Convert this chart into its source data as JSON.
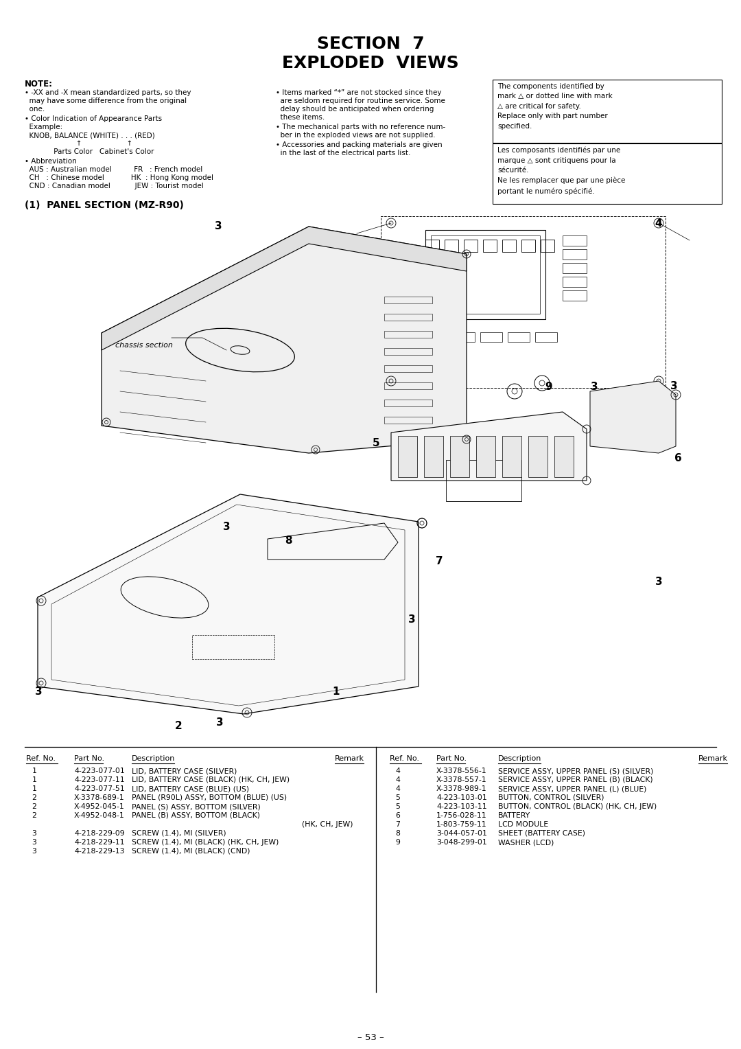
{
  "title_line1": "SECTION  7",
  "title_line2": "EXPLODED  VIEWS",
  "section_label": "(1)  PANEL SECTION (MZ-R90)",
  "page_number": "– 53 –",
  "bg_color": "#ffffff",
  "safety_box_en": "The components identified by\nmark △ or dotted line with mark\n△ are critical for safety.\nReplace only with part number\nspecified.",
  "safety_box_fr": "Les composants identifiés par une\nmarque △ sont critiquens pour la\nsécurité.\nNe les remplacer que par une pièce\nportant le numéro spécifié.",
  "parts_list_left": [
    [
      "Ref. No.",
      "Part No.",
      "Description",
      "Remark"
    ],
    [
      "1",
      "4-223-077-01",
      "LID, BATTERY CASE (SILVER)",
      ""
    ],
    [
      "1",
      "4-223-077-11",
      "LID, BATTERY CASE (BLACK) (HK, CH, JEW)",
      ""
    ],
    [
      "1",
      "4-223-077-51",
      "LID, BATTERY CASE (BLUE) (US)",
      ""
    ],
    [
      "2",
      "X-3378-689-1",
      "PANEL (R90L) ASSY, BOTTOM (BLUE) (US)",
      ""
    ],
    [
      "2",
      "X-4952-045-1",
      "PANEL (S) ASSY, BOTTOM (SILVER)",
      ""
    ],
    [
      "2",
      "X-4952-048-1",
      "PANEL (B) ASSY, BOTTOM (BLACK)",
      "(HK, CH, JEW)"
    ],
    [
      "3",
      "4-218-229-09",
      "SCREW (1.4), MI (SILVER)",
      ""
    ],
    [
      "3",
      "4-218-229-11",
      "SCREW (1.4), MI (BLACK) (HK, CH, JEW)",
      ""
    ],
    [
      "3",
      "4-218-229-13",
      "SCREW (1.4), MI (BLACK) (CND)",
      ""
    ]
  ],
  "parts_list_right": [
    [
      "Ref. No.",
      "Part No.",
      "Description",
      "Remark"
    ],
    [
      "4",
      "X-3378-556-1",
      "SERVICE ASSY, UPPER PANEL (S) (SILVER)",
      ""
    ],
    [
      "4",
      "X-3378-557-1",
      "SERVICE ASSY, UPPER PANEL (B) (BLACK)",
      ""
    ],
    [
      "4",
      "X-3378-989-1",
      "SERVICE ASSY, UPPER PANEL (L) (BLUE)",
      ""
    ],
    [
      "5",
      "4-223-103-01",
      "BUTTON, CONTROL (SILVER)",
      ""
    ],
    [
      "5",
      "4-223-103-11",
      "BUTTON, CONTROL (BLACK) (HK, CH, JEW)",
      ""
    ],
    [
      "6",
      "1-756-028-11",
      "BATTERY",
      ""
    ],
    [
      "7",
      "1-803-759-11",
      "LCD MODULE",
      ""
    ],
    [
      "8",
      "3-044-057-01",
      "SHEET (BATTERY CASE)",
      ""
    ],
    [
      "9",
      "3-048-299-01",
      "WASHER (LCD)",
      ""
    ]
  ]
}
